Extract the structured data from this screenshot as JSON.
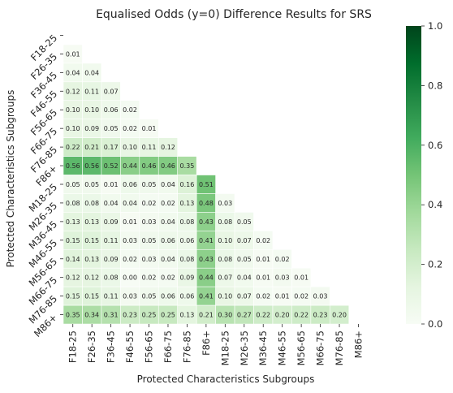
{
  "chart_data": {
    "type": "heatmap",
    "title": "Equalised Odds (y=0) Difference Results for SRS",
    "xlabel": "Protected Characteristics Subgroups",
    "ylabel": "Protected Characteristics Subgroups",
    "categories": [
      "F18-25",
      "F26-35",
      "F36-45",
      "F46-55",
      "F56-65",
      "F66-75",
      "F76-85",
      "F86+",
      "M18-25",
      "M26-35",
      "M36-45",
      "M46-55",
      "M56-65",
      "M66-75",
      "M76-85",
      "M86+"
    ],
    "mask": "upper-triangle-including-diagonal",
    "colormap": "Greens",
    "value_format": "2 decimals",
    "colorbar": {
      "min": 0.0,
      "max": 1.0,
      "ticks": [
        "0.0",
        "0.2",
        "0.4",
        "0.6",
        "0.8",
        "1.0"
      ]
    },
    "rows": [
      [],
      [
        0.01
      ],
      [
        0.04,
        0.04
      ],
      [
        0.12,
        0.11,
        0.07
      ],
      [
        0.1,
        0.1,
        0.06,
        0.02
      ],
      [
        0.1,
        0.09,
        0.05,
        0.02,
        0.01
      ],
      [
        0.22,
        0.21,
        0.17,
        0.1,
        0.11,
        0.12
      ],
      [
        0.56,
        0.56,
        0.52,
        0.44,
        0.46,
        0.46,
        0.35
      ],
      [
        0.05,
        0.05,
        0.01,
        0.06,
        0.05,
        0.04,
        0.16,
        0.51
      ],
      [
        0.08,
        0.08,
        0.04,
        0.04,
        0.02,
        0.02,
        0.13,
        0.48,
        0.03
      ],
      [
        0.13,
        0.13,
        0.09,
        0.01,
        0.03,
        0.04,
        0.08,
        0.43,
        0.08,
        0.05
      ],
      [
        0.15,
        0.15,
        0.11,
        0.03,
        0.05,
        0.06,
        0.06,
        0.41,
        0.1,
        0.07,
        0.02
      ],
      [
        0.14,
        0.13,
        0.09,
        0.02,
        0.03,
        0.04,
        0.08,
        0.43,
        0.08,
        0.05,
        0.01,
        0.02
      ],
      [
        0.12,
        0.12,
        0.08,
        0.0,
        0.02,
        0.02,
        0.09,
        0.44,
        0.07,
        0.04,
        0.01,
        0.03,
        0.01
      ],
      [
        0.15,
        0.15,
        0.11,
        0.03,
        0.05,
        0.06,
        0.06,
        0.41,
        0.1,
        0.07,
        0.02,
        0.01,
        0.02,
        0.03
      ],
      [
        0.35,
        0.34,
        0.31,
        0.23,
        0.25,
        0.25,
        0.13,
        0.21,
        0.3,
        0.27,
        0.22,
        0.2,
        0.22,
        0.23,
        0.2
      ]
    ],
    "grid": false,
    "legend": "colorbar-right"
  }
}
